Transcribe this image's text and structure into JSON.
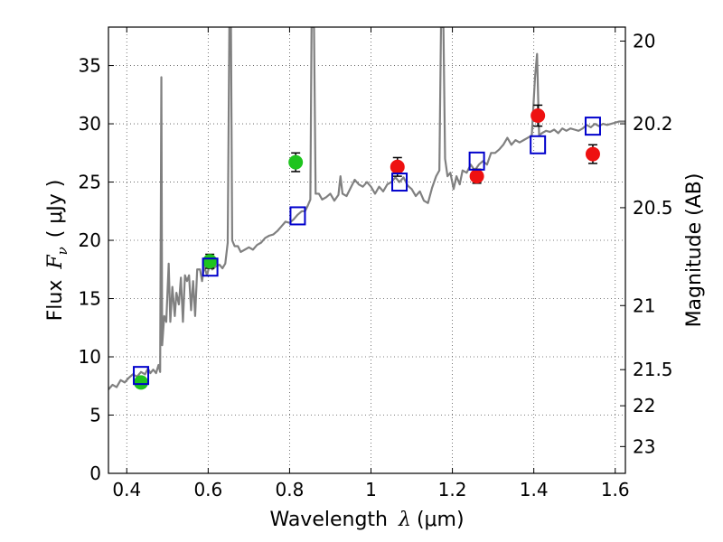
{
  "chart_data": {
    "type": "scatter",
    "xlabel": "Wavelength",
    "xlabel_symbol": "λ",
    "xlabel_unit": "(μm)",
    "ylabel": "Flux",
    "ylabel_symbol": "F",
    "ylabel_subscript": "ν",
    "ylabel_unit": "( μJy )",
    "ylabel_right": "Magnitude (AB)",
    "xlim": [
      0.355,
      1.625
    ],
    "ylim": [
      0,
      38.3
    ],
    "grid": true,
    "x_ticks": [
      0.4,
      0.6,
      0.8,
      1.0,
      1.2,
      1.4,
      1.6
    ],
    "x_tick_labels": [
      "0.4",
      "0.6",
      "0.8",
      "1",
      "1.2",
      "1.4",
      "1.6"
    ],
    "y_ticks": [
      0,
      5,
      10,
      15,
      20,
      25,
      30,
      35
    ],
    "y_tick_labels": [
      "0",
      "5",
      "10",
      "15",
      "20",
      "25",
      "30",
      "35"
    ],
    "right_ticks": [
      {
        "label": "20",
        "flux": 37.1
      },
      {
        "label": "20.2",
        "flux": 30.0
      },
      {
        "label": "20.5",
        "flux": 22.8
      },
      {
        "label": "21",
        "flux": 14.4
      },
      {
        "label": "21.5",
        "flux": 8.9
      },
      {
        "label": "22",
        "flux": 5.8
      },
      {
        "label": "23",
        "flux": 2.3
      }
    ],
    "colors": {
      "model": "#808080",
      "green": "#1ec41e",
      "red": "#ee1111",
      "box": "#0000cc",
      "errorbar": "#000000"
    },
    "series": [
      {
        "name": "model spectrum",
        "style": "line",
        "points": [
          [
            0.355,
            7.2
          ],
          [
            0.365,
            7.6
          ],
          [
            0.375,
            7.4
          ],
          [
            0.385,
            8.0
          ],
          [
            0.395,
            7.8
          ],
          [
            0.405,
            8.2
          ],
          [
            0.415,
            8.5
          ],
          [
            0.425,
            8.3
          ],
          [
            0.435,
            8.7
          ],
          [
            0.445,
            8.5
          ],
          [
            0.452,
            9.0
          ],
          [
            0.458,
            8.6
          ],
          [
            0.465,
            8.9
          ],
          [
            0.472,
            8.6
          ],
          [
            0.478,
            9.3
          ],
          [
            0.482,
            8.7
          ],
          [
            0.485,
            34.0
          ],
          [
            0.487,
            11.0
          ],
          [
            0.492,
            13.5
          ],
          [
            0.497,
            13.0
          ],
          [
            0.503,
            18.0
          ],
          [
            0.507,
            13.0
          ],
          [
            0.512,
            16.0
          ],
          [
            0.518,
            13.5
          ],
          [
            0.522,
            15.5
          ],
          [
            0.528,
            14.5
          ],
          [
            0.533,
            16.8
          ],
          [
            0.538,
            13.0
          ],
          [
            0.543,
            17.0
          ],
          [
            0.548,
            16.5
          ],
          [
            0.553,
            17.0
          ],
          [
            0.558,
            14.0
          ],
          [
            0.563,
            16.5
          ],
          [
            0.568,
            13.5
          ],
          [
            0.573,
            17.5
          ],
          [
            0.58,
            17.5
          ],
          [
            0.585,
            16.5
          ],
          [
            0.59,
            17.8
          ],
          [
            0.597,
            17.0
          ],
          [
            0.603,
            17.8
          ],
          [
            0.61,
            17.5
          ],
          [
            0.62,
            17.8
          ],
          [
            0.628,
            17.9
          ],
          [
            0.635,
            17.6
          ],
          [
            0.642,
            18.0
          ],
          [
            0.648,
            19.8
          ],
          [
            0.652,
            38.3
          ],
          [
            0.656,
            38.3
          ],
          [
            0.659,
            20.0
          ],
          [
            0.665,
            19.5
          ],
          [
            0.673,
            19.5
          ],
          [
            0.68,
            19.0
          ],
          [
            0.69,
            19.2
          ],
          [
            0.7,
            19.4
          ],
          [
            0.71,
            19.2
          ],
          [
            0.72,
            19.6
          ],
          [
            0.73,
            19.8
          ],
          [
            0.74,
            20.2
          ],
          [
            0.75,
            20.4
          ],
          [
            0.76,
            20.5
          ],
          [
            0.77,
            20.8
          ],
          [
            0.78,
            21.2
          ],
          [
            0.79,
            21.6
          ],
          [
            0.8,
            21.5
          ],
          [
            0.81,
            21.8
          ],
          [
            0.82,
            22.2
          ],
          [
            0.83,
            22.5
          ],
          [
            0.838,
            22.5
          ],
          [
            0.845,
            23.0
          ],
          [
            0.851,
            23.5
          ],
          [
            0.854,
            38.3
          ],
          [
            0.86,
            38.3
          ],
          [
            0.864,
            24.0
          ],
          [
            0.872,
            24.0
          ],
          [
            0.88,
            23.5
          ],
          [
            0.89,
            23.7
          ],
          [
            0.9,
            24.0
          ],
          [
            0.91,
            23.4
          ],
          [
            0.92,
            23.9
          ],
          [
            0.925,
            25.5
          ],
          [
            0.93,
            24.0
          ],
          [
            0.94,
            23.8
          ],
          [
            0.95,
            24.5
          ],
          [
            0.96,
            25.2
          ],
          [
            0.97,
            24.8
          ],
          [
            0.98,
            24.6
          ],
          [
            0.99,
            25.0
          ],
          [
            1.0,
            24.6
          ],
          [
            1.01,
            24.0
          ],
          [
            1.02,
            24.6
          ],
          [
            1.03,
            24.2
          ],
          [
            1.04,
            24.8
          ],
          [
            1.05,
            25.0
          ],
          [
            1.06,
            25.4
          ],
          [
            1.07,
            25.0
          ],
          [
            1.08,
            25.4
          ],
          [
            1.09,
            24.7
          ],
          [
            1.1,
            24.4
          ],
          [
            1.11,
            23.8
          ],
          [
            1.12,
            24.2
          ],
          [
            1.13,
            23.4
          ],
          [
            1.14,
            23.2
          ],
          [
            1.15,
            24.5
          ],
          [
            1.16,
            25.5
          ],
          [
            1.168,
            26.0
          ],
          [
            1.172,
            38.3
          ],
          [
            1.178,
            38.3
          ],
          [
            1.182,
            27.0
          ],
          [
            1.188,
            25.5
          ],
          [
            1.195,
            25.8
          ],
          [
            1.203,
            24.4
          ],
          [
            1.21,
            25.5
          ],
          [
            1.218,
            24.8
          ],
          [
            1.225,
            26.0
          ],
          [
            1.235,
            25.8
          ],
          [
            1.245,
            26.5
          ],
          [
            1.255,
            26.0
          ],
          [
            1.265,
            26.5
          ],
          [
            1.275,
            26.8
          ],
          [
            1.285,
            26.5
          ],
          [
            1.295,
            27.5
          ],
          [
            1.305,
            27.5
          ],
          [
            1.315,
            27.8
          ],
          [
            1.325,
            28.2
          ],
          [
            1.335,
            28.8
          ],
          [
            1.345,
            28.2
          ],
          [
            1.355,
            28.6
          ],
          [
            1.365,
            28.4
          ],
          [
            1.375,
            28.6
          ],
          [
            1.385,
            28.8
          ],
          [
            1.395,
            29.0
          ],
          [
            1.403,
            34.0
          ],
          [
            1.408,
            36.0
          ],
          [
            1.413,
            29.0
          ],
          [
            1.42,
            29.2
          ],
          [
            1.43,
            29.4
          ],
          [
            1.44,
            29.3
          ],
          [
            1.45,
            29.5
          ],
          [
            1.46,
            29.2
          ],
          [
            1.47,
            29.6
          ],
          [
            1.48,
            29.4
          ],
          [
            1.49,
            29.6
          ],
          [
            1.5,
            29.5
          ],
          [
            1.51,
            29.4
          ],
          [
            1.52,
            29.6
          ],
          [
            1.53,
            29.9
          ],
          [
            1.54,
            29.7
          ],
          [
            1.55,
            30.0
          ],
          [
            1.56,
            29.8
          ],
          [
            1.57,
            30.0
          ],
          [
            1.58,
            29.9
          ],
          [
            1.59,
            30.0
          ],
          [
            1.6,
            30.1
          ],
          [
            1.61,
            30.2
          ],
          [
            1.625,
            30.2
          ]
        ]
      },
      {
        "name": "photometry (green)",
        "style": "circle",
        "points": [
          {
            "x": 0.435,
            "y": 7.8,
            "err": 0.45
          },
          {
            "x": 0.604,
            "y": 18.2,
            "err": 0.6
          },
          {
            "x": 0.815,
            "y": 26.7,
            "err": 0.8
          }
        ]
      },
      {
        "name": "photometry (red)",
        "style": "circle",
        "points": [
          {
            "x": 1.065,
            "y": 26.3,
            "err": 0.8
          },
          {
            "x": 1.26,
            "y": 25.5,
            "err": 0.6
          },
          {
            "x": 1.41,
            "y": 30.7,
            "err": 0.9
          },
          {
            "x": 1.545,
            "y": 27.4,
            "err": 0.8
          }
        ]
      },
      {
        "name": "synthetic photometry",
        "style": "square",
        "points": [
          {
            "x": 0.435,
            "y": 8.4
          },
          {
            "x": 0.605,
            "y": 17.7
          },
          {
            "x": 0.82,
            "y": 22.1
          },
          {
            "x": 1.07,
            "y": 25.0
          },
          {
            "x": 1.26,
            "y": 26.8
          },
          {
            "x": 1.41,
            "y": 28.2
          },
          {
            "x": 1.545,
            "y": 29.8
          }
        ]
      }
    ]
  }
}
